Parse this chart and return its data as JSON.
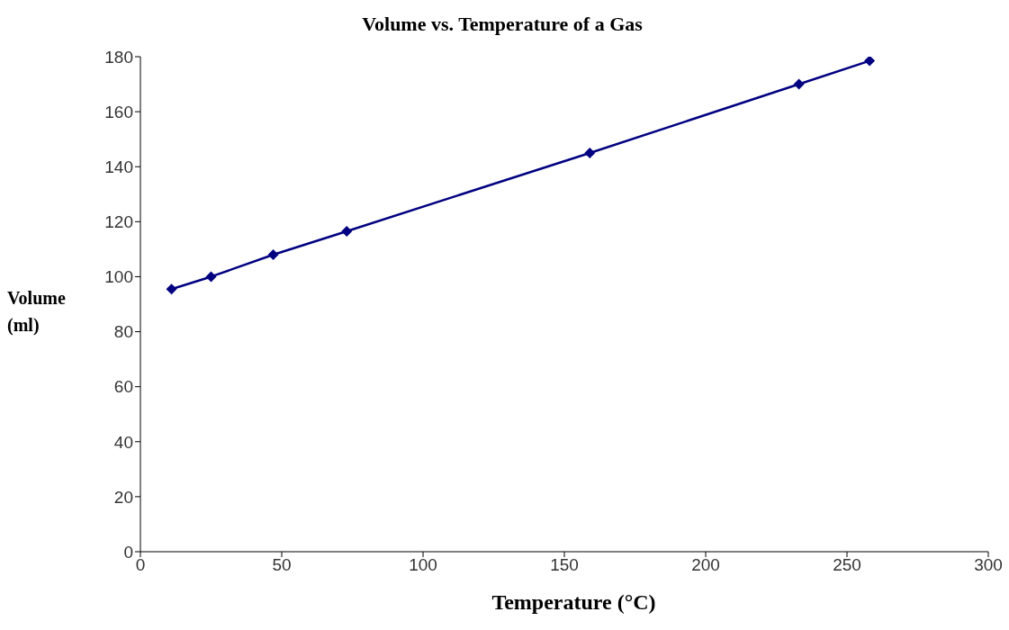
{
  "chart_data": {
    "type": "line",
    "title": "Volume vs. Temperature of a Gas",
    "xlabel": "Temperature (°C)",
    "ylabel": "Volume (ml)",
    "x": [
      11,
      25,
      47,
      73,
      159,
      233,
      258
    ],
    "series": [
      {
        "color": "#000080",
        "values": [
          95.5,
          100,
          108,
          116.5,
          145,
          170,
          178.5
        ]
      }
    ],
    "xlim": [
      0,
      300
    ],
    "xticks": [
      0,
      50,
      100,
      150,
      200,
      250,
      300
    ],
    "ylim": [
      0,
      180
    ],
    "yticks": [
      0,
      20,
      40,
      60,
      80,
      100,
      120,
      140,
      160,
      180
    ],
    "grid": false,
    "legend": false,
    "marker": "diamond",
    "line_style": "solid"
  }
}
